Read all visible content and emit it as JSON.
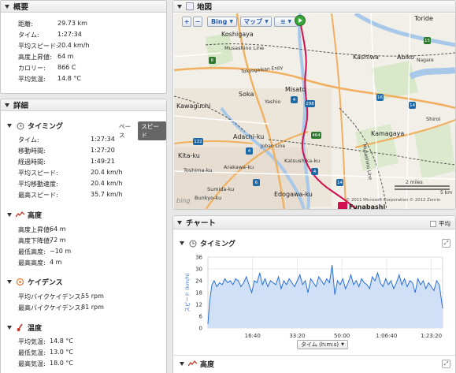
{
  "summary": {
    "title": "概要",
    "rows": [
      {
        "label": "距離:",
        "value": "29.73 km"
      },
      {
        "label": "タイム:",
        "value": "1:27:34"
      },
      {
        "label": "平均スピード:",
        "value": "20.4 km/h"
      },
      {
        "label": "高度上昇値:",
        "value": "64 m"
      },
      {
        "label": "カロリー:",
        "value": "866 C"
      },
      {
        "label": "平均気温:",
        "value": "14.8 °C"
      }
    ]
  },
  "details": {
    "title": "詳細",
    "timing": {
      "title": "タイミング",
      "pace_label": "ペース",
      "speed_label": "スピード",
      "rows": [
        {
          "label": "タイム:",
          "value": "1:27:34"
        },
        {
          "label": "移動時間:",
          "value": "1:27:20"
        },
        {
          "label": "経過時間:",
          "value": "1:49:21"
        },
        {
          "label": "平均スピード:",
          "value": "20.4 km/h"
        },
        {
          "label": "平均移動速度:",
          "value": "20.4 km/h"
        },
        {
          "label": "最高スピード:",
          "value": "35.7 km/h"
        }
      ]
    },
    "elevation": {
      "title": "高度",
      "rows": [
        {
          "label": "高度上昇値:",
          "value": "64 m"
        },
        {
          "label": "高度下降値:",
          "value": "72 m"
        },
        {
          "label": "最低高度:",
          "value": "−10 m"
        },
        {
          "label": "最高高度:",
          "value": "4 m"
        }
      ]
    },
    "cadence": {
      "title": "ケイデンス",
      "rows": [
        {
          "label": "平均バイクケイデンス:",
          "value": "55 rpm"
        },
        {
          "label": "最高バイクケイデンス:",
          "value": "81 rpm"
        }
      ]
    },
    "temperature": {
      "title": "温度",
      "rows": [
        {
          "label": "平均気温:",
          "value": "14.8 °C"
        },
        {
          "label": "最低気温:",
          "value": "13.0 °C"
        },
        {
          "label": "最高気温:",
          "value": "18.0 °C"
        }
      ]
    }
  },
  "map": {
    "title": "地図",
    "zoom_in": "+",
    "zoom_out": "−",
    "bing_label": "Bing",
    "map_type_label": "マップ",
    "scale_miles": "2 miles",
    "scale_km": "5 km",
    "bing_logo": "bing",
    "copyright": "© 2011 Microsoft Corporation   © 2012 Zenrin",
    "places": {
      "toride": "Toride",
      "koshigaya": "Koshigaya",
      "musashino_line": "Musashino Line",
      "kashiwa": "Kashiwa",
      "abiko": "Abiko",
      "tokyogaikan": "Tokyogaikan Expy",
      "kawaguchi": "Kawaguchi",
      "soka": "Soka",
      "yashio": "Yashio",
      "misato": "Misato",
      "shiroi": "Shiroi",
      "adachi": "Adachi-ku",
      "joban": "Joban Line",
      "kamagaya": "Kamagaya",
      "kita": "Kita-ku",
      "arakawa": "Arakawa-ku",
      "katsushika": "Katsushika-ku",
      "toshima": "Toshima-ku",
      "sumida": "Sumida-ku",
      "bunkyo": "Bunkyo-ku",
      "edogawa": "Edogawa-ku",
      "funabashi": "Funabashi",
      "musashino_line2": "Musashino Line",
      "nagare": "Nagare"
    },
    "shields": [
      "4",
      "15",
      "298",
      "4",
      "464",
      "4",
      "6",
      "6",
      "14",
      "16",
      "122",
      "14"
    ]
  },
  "chart": {
    "title": "チャート",
    "avg_label": "平均",
    "timing_title": "タイミング",
    "xaxis_select": "タイム (h:m:s)",
    "elevation_title": "高度"
  },
  "chart_data": {
    "type": "area",
    "title": "タイミング",
    "ylabel": "スピード (km/h)",
    "xlabel": "タイム (h:m:s)",
    "ylim": [
      0,
      36
    ],
    "yticks": [
      0,
      6,
      12,
      18,
      24,
      30,
      36
    ],
    "xtick_labels": [
      "16:40",
      "33:20",
      "50:00",
      "1:06:40",
      "1:23:20"
    ],
    "xtick_seconds": [
      1000,
      2000,
      3000,
      4000,
      5000
    ],
    "xlim_seconds": [
      0,
      5254
    ],
    "color": "#2a6fd6",
    "x_seconds": [
      0,
      40,
      90,
      140,
      200,
      260,
      320,
      380,
      440,
      500,
      560,
      620,
      680,
      740,
      800,
      860,
      920,
      980,
      1040,
      1100,
      1160,
      1220,
      1280,
      1340,
      1400,
      1460,
      1520,
      1580,
      1640,
      1700,
      1760,
      1820,
      1880,
      1940,
      2000,
      2060,
      2120,
      2180,
      2240,
      2300,
      2360,
      2420,
      2480,
      2540,
      2600,
      2660,
      2720,
      2780,
      2840,
      2900,
      2960,
      3020,
      3080,
      3140,
      3200,
      3260,
      3320,
      3380,
      3440,
      3500,
      3560,
      3620,
      3680,
      3740,
      3800,
      3860,
      3920,
      3980,
      4040,
      4100,
      4160,
      4220,
      4280,
      4340,
      4400,
      4460,
      4520,
      4580,
      4640,
      4700,
      4760,
      4820,
      4880,
      4940,
      5000,
      5060,
      5120,
      5180,
      5254
    ],
    "speed_kmh": [
      2,
      14,
      22,
      24,
      21,
      23,
      22,
      25,
      23,
      24,
      22,
      25,
      24,
      21,
      23,
      26,
      22,
      18,
      24,
      23,
      28,
      22,
      25,
      21,
      24,
      23,
      22,
      26,
      20,
      24,
      22,
      25,
      23,
      21,
      24,
      27,
      22,
      24,
      18,
      25,
      23,
      21,
      26,
      24,
      22,
      25,
      23,
      32,
      17,
      24,
      22,
      25,
      20,
      23,
      27,
      22,
      24,
      21,
      25,
      23,
      22,
      20,
      26,
      24,
      28,
      23,
      21,
      25,
      22,
      24,
      20,
      23,
      27,
      22,
      25,
      21,
      24,
      23,
      18,
      25,
      22,
      24,
      20,
      23,
      21,
      19,
      24,
      22,
      10
    ]
  }
}
